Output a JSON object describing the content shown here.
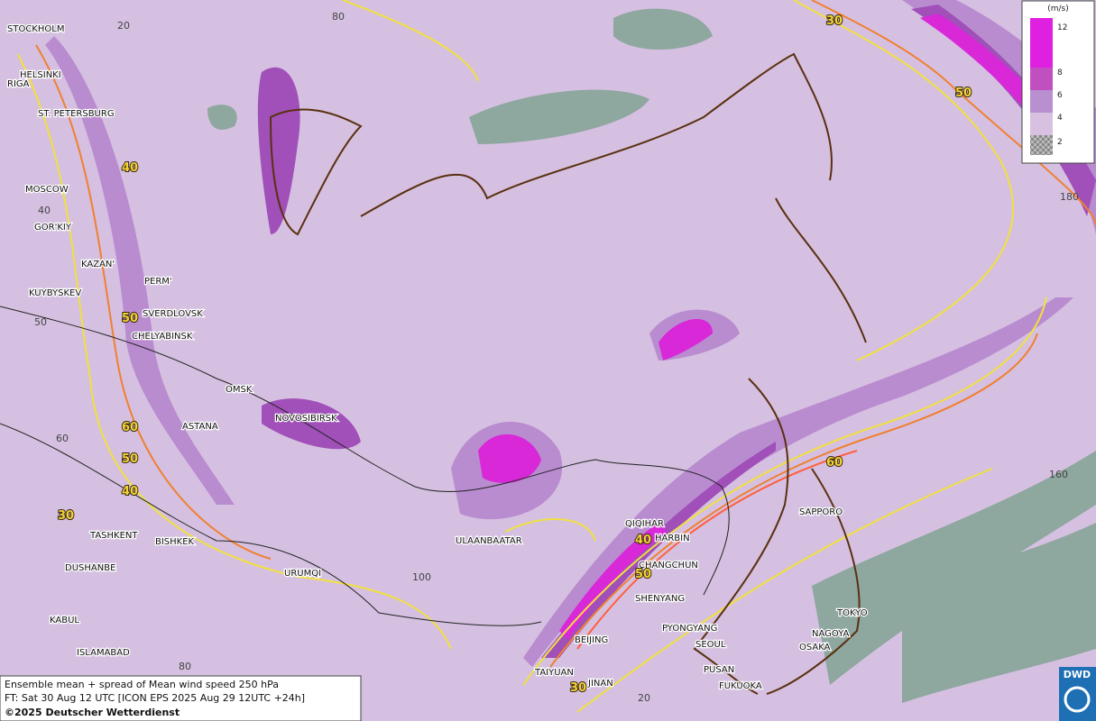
{
  "legend": {
    "unit": "(m/s)",
    "levels": [
      12,
      8,
      6,
      4,
      2
    ]
  },
  "cities": [
    "STOCKHOLM",
    "HELSINKI",
    "RIGA",
    "ST. PETERSBURG",
    "MOSCOW",
    "GOR'KIY",
    "KAZAN'",
    "PERM'",
    "KUYBYSKEV",
    "SVERDLOVSK",
    "CHELYABINSK",
    "OMSK",
    "NOVOSIBIRSK",
    "ASTANA",
    "TASHKENT",
    "BISHKEK",
    "DUSHANBE",
    "URUMQI",
    "ULAANBAATAR",
    "QIQIHAR",
    "HARBIN",
    "CHANGCHUN",
    "SHENYANG",
    "PYONGYANG",
    "SEOUL",
    "BEIJING",
    "TAIYUAN",
    "JINAN",
    "PUSAN",
    "FUKUOKA",
    "NAGOYA",
    "OSAKA",
    "TOKYO",
    "SAPPORO",
    "KABUL",
    "ISLAMABAD"
  ],
  "grid_labels": [
    20,
    80,
    40,
    50,
    60,
    100,
    80,
    20,
    160,
    180
  ],
  "contour_labels": [
    30,
    50,
    40,
    50,
    60,
    50,
    40,
    30,
    60,
    40,
    50,
    30
  ],
  "footer": {
    "line1": "Ensemble mean + spread of Mean wind speed 250 hPa",
    "line2": "FT: Sat 30 Aug 12 UTC [ICON EPS 2025 Aug 29 12UTC +24h]",
    "copyright": "©2025 Deutscher Wetterdienst"
  },
  "logo": "DWD"
}
